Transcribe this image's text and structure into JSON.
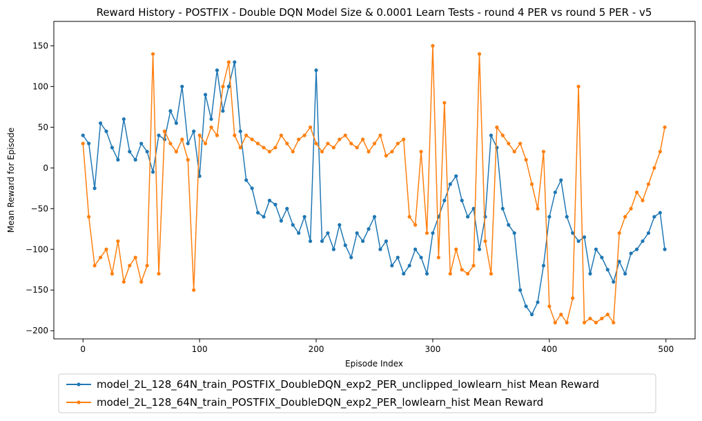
{
  "chart_data": {
    "type": "line",
    "title": "Reward History - POSTFIX - Double DQN Model Size & 0.0001 Learn Tests - round 4 PER vs round 5 PER - v5",
    "xlabel": "Episode Index",
    "ylabel": "Mean Reward for Episode",
    "xlim": [
      -25,
      525
    ],
    "ylim": [
      -210,
      180
    ],
    "xticks": [
      0,
      100,
      200,
      300,
      400,
      500
    ],
    "yticks": [
      -200,
      -150,
      -100,
      -50,
      0,
      50,
      100,
      150
    ],
    "xtick_labels": [
      "0",
      "100",
      "200",
      "300",
      "400",
      "500"
    ],
    "ytick_labels": [
      "−200",
      "−150",
      "−100",
      "−50",
      "0",
      "50",
      "100",
      "150"
    ],
    "grid": false,
    "legend_position": "below-plot",
    "marker": "circle",
    "series": [
      {
        "name": "model_2L_128_64N_train_POSTFIX_DoubleDQN_exp2_PER_unclipped_lowlearn_hist Mean Reward",
        "color": "#1f77b4",
        "x": [
          0,
          5,
          10,
          15,
          20,
          25,
          30,
          35,
          40,
          45,
          50,
          55,
          60,
          65,
          70,
          75,
          80,
          85,
          90,
          95,
          100,
          105,
          110,
          115,
          120,
          125,
          130,
          135,
          140,
          145,
          150,
          155,
          160,
          165,
          170,
          175,
          180,
          185,
          190,
          195,
          200,
          205,
          210,
          215,
          220,
          225,
          230,
          235,
          240,
          245,
          250,
          255,
          260,
          265,
          270,
          275,
          280,
          285,
          290,
          295,
          300,
          305,
          310,
          315,
          320,
          325,
          330,
          335,
          340,
          345,
          350,
          355,
          360,
          365,
          370,
          375,
          380,
          385,
          390,
          395,
          400,
          405,
          410,
          415,
          420,
          425,
          430,
          435,
          440,
          445,
          450,
          455,
          460,
          465,
          470,
          475,
          480,
          485,
          490,
          495,
          499
        ],
        "values": [
          40,
          30,
          -25,
          55,
          45,
          25,
          10,
          60,
          20,
          10,
          30,
          20,
          -5,
          40,
          35,
          70,
          55,
          100,
          30,
          45,
          -10,
          90,
          60,
          120,
          70,
          100,
          130,
          45,
          -15,
          -25,
          -55,
          -60,
          -40,
          -45,
          -65,
          -50,
          -70,
          -80,
          -60,
          -90,
          120,
          -90,
          -80,
          -100,
          -70,
          -95,
          -110,
          -80,
          -90,
          -75,
          -60,
          -100,
          -90,
          -120,
          -110,
          -130,
          -120,
          -100,
          -110,
          -130,
          -80,
          -60,
          -40,
          -20,
          -10,
          -40,
          -60,
          -50,
          -100,
          -60,
          40,
          25,
          -50,
          -70,
          -80,
          -150,
          -170,
          -180,
          -165,
          -120,
          -60,
          -30,
          -15,
          -60,
          -80,
          -90,
          -85,
          -130,
          -100,
          -110,
          -125,
          -140,
          -115,
          -130,
          -105,
          -100,
          -90,
          -80,
          -60,
          -55,
          -100
        ]
      },
      {
        "name": "model_2L_128_64N_train_POSTFIX_DoubleDQN_exp2_PER_lowlearn_hist Mean Reward",
        "color": "#ff7f0e",
        "x": [
          0,
          5,
          10,
          15,
          20,
          25,
          30,
          35,
          40,
          45,
          50,
          55,
          60,
          65,
          70,
          75,
          80,
          85,
          90,
          95,
          100,
          105,
          110,
          115,
          120,
          125,
          130,
          135,
          140,
          145,
          150,
          155,
          160,
          165,
          170,
          175,
          180,
          185,
          190,
          195,
          200,
          205,
          210,
          215,
          220,
          225,
          230,
          235,
          240,
          245,
          250,
          255,
          260,
          265,
          270,
          275,
          280,
          285,
          290,
          295,
          300,
          305,
          310,
          315,
          320,
          325,
          330,
          335,
          340,
          345,
          350,
          355,
          360,
          365,
          370,
          375,
          380,
          385,
          390,
          395,
          400,
          405,
          410,
          415,
          420,
          425,
          430,
          435,
          440,
          445,
          450,
          455,
          460,
          465,
          470,
          475,
          480,
          485,
          490,
          495,
          499
        ],
        "values": [
          30,
          -60,
          -120,
          -110,
          -100,
          -130,
          -90,
          -140,
          -120,
          -110,
          -140,
          -120,
          140,
          -130,
          45,
          30,
          20,
          35,
          10,
          -150,
          40,
          30,
          50,
          40,
          100,
          130,
          40,
          25,
          40,
          35,
          30,
          25,
          20,
          25,
          40,
          30,
          20,
          35,
          40,
          50,
          30,
          20,
          30,
          25,
          35,
          40,
          30,
          25,
          35,
          20,
          30,
          40,
          15,
          20,
          30,
          35,
          -60,
          -70,
          20,
          -80,
          150,
          -110,
          80,
          -130,
          -100,
          -125,
          -130,
          -120,
          140,
          -90,
          -130,
          50,
          40,
          30,
          20,
          30,
          10,
          -20,
          -50,
          20,
          -170,
          -190,
          -180,
          -190,
          -160,
          100,
          -190,
          -185,
          -190,
          -185,
          -180,
          -190,
          -80,
          -60,
          -50,
          -30,
          -40,
          -20,
          0,
          20,
          50
        ]
      }
    ]
  }
}
